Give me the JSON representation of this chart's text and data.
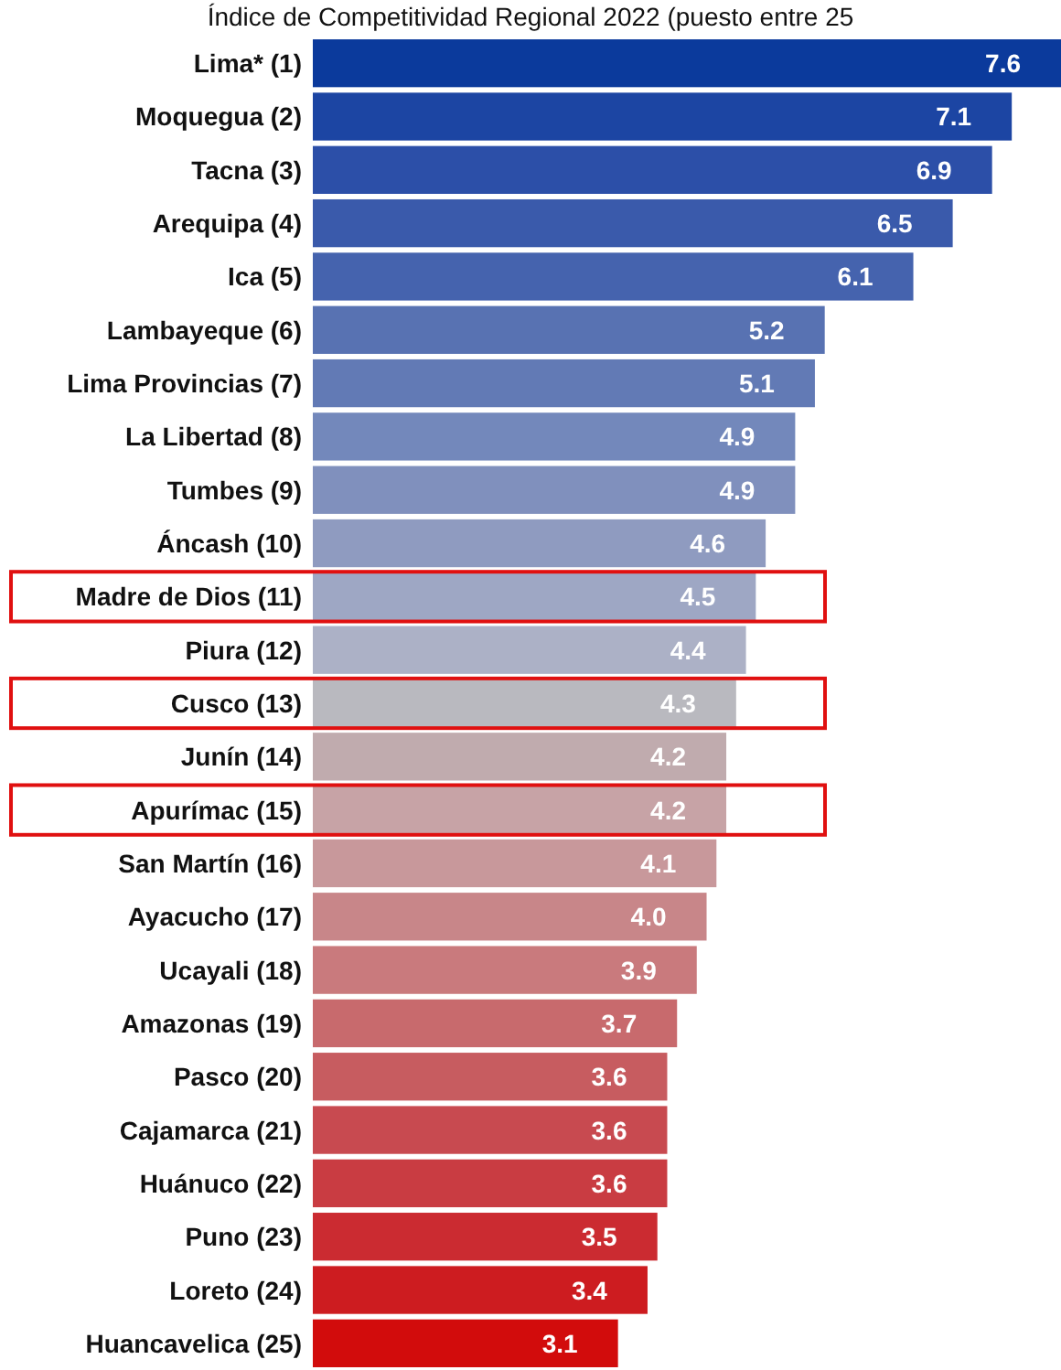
{
  "chart_data": {
    "type": "bar",
    "orientation": "horizontal",
    "title": "Índice de Competitividad Regional 2022 (puesto entre 25",
    "categories": [
      "Lima* (1)",
      "Moquegua (2)",
      "Tacna (3)",
      "Arequipa (4)",
      "Ica (5)",
      "Lambayeque (6)",
      "Lima Provincias (7)",
      "La Libertad (8)",
      "Tumbes (9)",
      "Áncash (10)",
      "Madre de Dios (11)",
      "Piura (12)",
      "Cusco (13)",
      "Junín (14)",
      "Apurímac (15)",
      "San Martín (16)",
      "Ayacucho (17)",
      "Ucayali (18)",
      "Amazonas (19)",
      "Pasco (20)",
      "Cajamarca (21)",
      "Huánuco (22)",
      "Puno (23)",
      "Loreto (24)",
      "Huancavelica (25)"
    ],
    "values": [
      7.6,
      7.1,
      6.9,
      6.5,
      6.1,
      5.2,
      5.1,
      4.9,
      4.9,
      4.6,
      4.5,
      4.4,
      4.3,
      4.2,
      4.2,
      4.1,
      4.0,
      3.9,
      3.7,
      3.6,
      3.6,
      3.6,
      3.5,
      3.4,
      3.1
    ],
    "colors": [
      "#0b3a9c",
      "#1c45a3",
      "#2c4fa8",
      "#3a5aab",
      "#4563ae",
      "#5872b2",
      "#627ab5",
      "#7388bb",
      "#8090bd",
      "#8f9bc0",
      "#9ea7c4",
      "#acb1c6",
      "#b9b9bf",
      "#c0abae",
      "#c7a3a6",
      "#c8989b",
      "#c88689",
      "#c97a7d",
      "#c86a6d",
      "#c75c60",
      "#c84a50",
      "#c93c42",
      "#cb2b31",
      "#cd1c20",
      "#d20c0c"
    ],
    "value_labels": [
      "7.6",
      "7.1",
      "6.9",
      "6.5",
      "6.1",
      "5.2",
      "5.1",
      "4.9",
      "4.9",
      "4.6",
      "4.5",
      "4.4",
      "4.3",
      "4.2",
      "4.2",
      "4.1",
      "4.0",
      "3.9",
      "3.7",
      "3.6",
      "3.6",
      "3.6",
      "3.5",
      "3.4",
      "3.1"
    ]
  }
}
